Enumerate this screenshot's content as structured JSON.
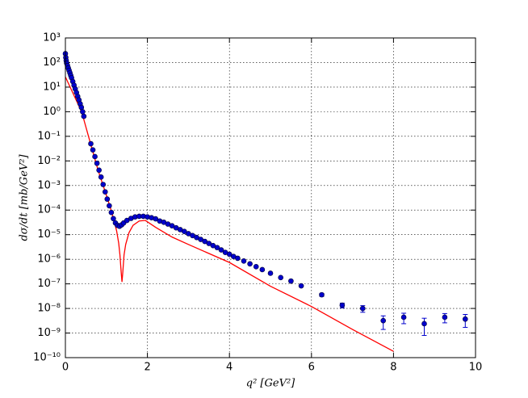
{
  "chart_data": {
    "type": "scatter",
    "xlabel": "q² [GeV²]",
    "ylabel": "dσ/dt [mb/GeV²]",
    "xlim": [
      0,
      10
    ],
    "xticks": [
      0,
      2,
      4,
      6,
      8,
      10
    ],
    "ylim": [
      1e-10,
      1000
    ],
    "log_y": true,
    "grid": true,
    "yticks": [
      {
        "value": 1e-10,
        "label": "10⁻¹⁰"
      },
      {
        "value": 1e-09,
        "label": "10⁻⁹"
      },
      {
        "value": 1e-08,
        "label": "10⁻⁸"
      },
      {
        "value": 1e-07,
        "label": "10⁻⁷"
      },
      {
        "value": 1e-06,
        "label": "10⁻⁶"
      },
      {
        "value": 1e-05,
        "label": "10⁻⁵"
      },
      {
        "value": 0.0001,
        "label": "10⁻⁴"
      },
      {
        "value": 0.001,
        "label": "10⁻³"
      },
      {
        "value": 0.01,
        "label": "10⁻²"
      },
      {
        "value": 0.1,
        "label": "10⁻¹"
      },
      {
        "value": 1,
        "label": "10⁰"
      },
      {
        "value": 10,
        "label": "10¹"
      },
      {
        "value": 100,
        "label": "10²"
      },
      {
        "value": 1000,
        "label": "10³"
      }
    ],
    "series": [
      {
        "type": "scatter",
        "color": "#0000cc",
        "x": [
          0,
          0.01,
          0.02,
          0.03,
          0.05,
          0.07,
          0.09,
          0.11,
          0.13,
          0.15,
          0.18,
          0.21,
          0.24,
          0.27,
          0.3,
          0.33,
          0.36,
          0.39,
          0.42,
          0.45,
          0.62,
          0.67,
          0.72,
          0.77,
          0.82,
          0.87,
          0.92,
          0.97,
          1.02,
          1.07,
          1.12,
          1.17,
          1.22,
          1.27,
          1.32,
          1.37,
          1.42,
          1.5,
          1.6,
          1.7,
          1.8,
          1.9,
          2.0,
          2.1,
          2.2,
          2.3,
          2.4,
          2.5,
          2.6,
          2.7,
          2.8,
          2.9,
          3.0,
          3.1,
          3.2,
          3.3,
          3.4,
          3.5,
          3.6,
          3.7,
          3.8,
          3.9,
          4.0,
          4.1,
          4.2,
          4.35,
          4.5,
          4.65,
          4.8,
          5.0,
          5.25,
          5.5,
          5.75,
          6.25,
          6.75,
          7.25,
          7.75,
          8.25,
          8.75,
          9.25,
          9.75
        ],
        "values": [
          230,
          160,
          120,
          95,
          75,
          60,
          48,
          38,
          30,
          24,
          17,
          12,
          8.5,
          6,
          4.2,
          3,
          2.1,
          1.5,
          1.0,
          0.65,
          0.05,
          0.028,
          0.015,
          0.008,
          0.0042,
          0.0022,
          0.0011,
          0.00055,
          0.00028,
          0.00015,
          8e-05,
          4.5e-05,
          3e-05,
          2.4e-05,
          2.2e-05,
          2.5e-05,
          3e-05,
          3.8e-05,
          4.6e-05,
          5.3e-05,
          5.6e-05,
          5.6e-05,
          5.3e-05,
          4.9e-05,
          4.4e-05,
          3.6e-05,
          3.2e-05,
          2.7e-05,
          2.3e-05,
          1.9e-05,
          1.6e-05,
          1.35e-05,
          1.1e-05,
          9.2e-06,
          7.7e-06,
          6.4e-06,
          5.3e-06,
          4.4e-06,
          3.6e-06,
          3e-06,
          2.4e-06,
          1.9e-06,
          1.6e-06,
          1.3e-06,
          1.1e-06,
          8.5e-07,
          6.5e-07,
          5e-07,
          3.8e-07,
          2.7e-07,
          1.8e-07,
          1.3e-07,
          8.3e-08,
          3.6e-08,
          1.35e-08,
          1e-08,
          3.2e-09,
          4.4e-09,
          2.4e-09,
          4.4e-09,
          3.7e-09
        ],
        "errors": [
          null,
          null,
          null,
          null,
          null,
          null,
          null,
          null,
          null,
          null,
          null,
          null,
          null,
          null,
          null,
          null,
          null,
          null,
          null,
          null,
          null,
          null,
          null,
          null,
          null,
          null,
          null,
          null,
          null,
          null,
          null,
          null,
          null,
          null,
          null,
          null,
          null,
          null,
          null,
          null,
          null,
          null,
          null,
          null,
          null,
          null,
          null,
          null,
          null,
          null,
          null,
          null,
          null,
          null,
          null,
          null,
          null,
          null,
          null,
          null,
          null,
          null,
          null,
          null,
          null,
          null,
          null,
          null,
          null,
          null,
          null,
          null,
          null,
          5e-09,
          3e-09,
          3e-09,
          1.8e-09,
          2e-09,
          1.6e-09,
          1.8e-09,
          2e-09
        ]
      },
      {
        "type": "line",
        "color": "#ff0000",
        "x": [
          0,
          0.2,
          0.4,
          0.6,
          0.8,
          1.0,
          1.1,
          1.2,
          1.25,
          1.3,
          1.33,
          1.36,
          1.38,
          1.4,
          1.43,
          1.47,
          1.55,
          1.65,
          1.8,
          1.95,
          2.2,
          2.6,
          3,
          4,
          5,
          6,
          7,
          8
        ],
        "values": [
          26,
          5,
          0.95,
          0.06,
          0.004,
          0.0004,
          0.00012,
          3e-05,
          1.4e-05,
          4.5e-06,
          1.5e-06,
          3e-07,
          1.2e-07,
          3e-07,
          1.5e-06,
          4e-06,
          1.2e-05,
          2.4e-05,
          3.6e-05,
          3.8e-05,
          2e-05,
          8e-06,
          4e-06,
          7.4e-07,
          8e-08,
          1.2e-08,
          1.4e-09,
          1.8e-10
        ]
      }
    ]
  }
}
